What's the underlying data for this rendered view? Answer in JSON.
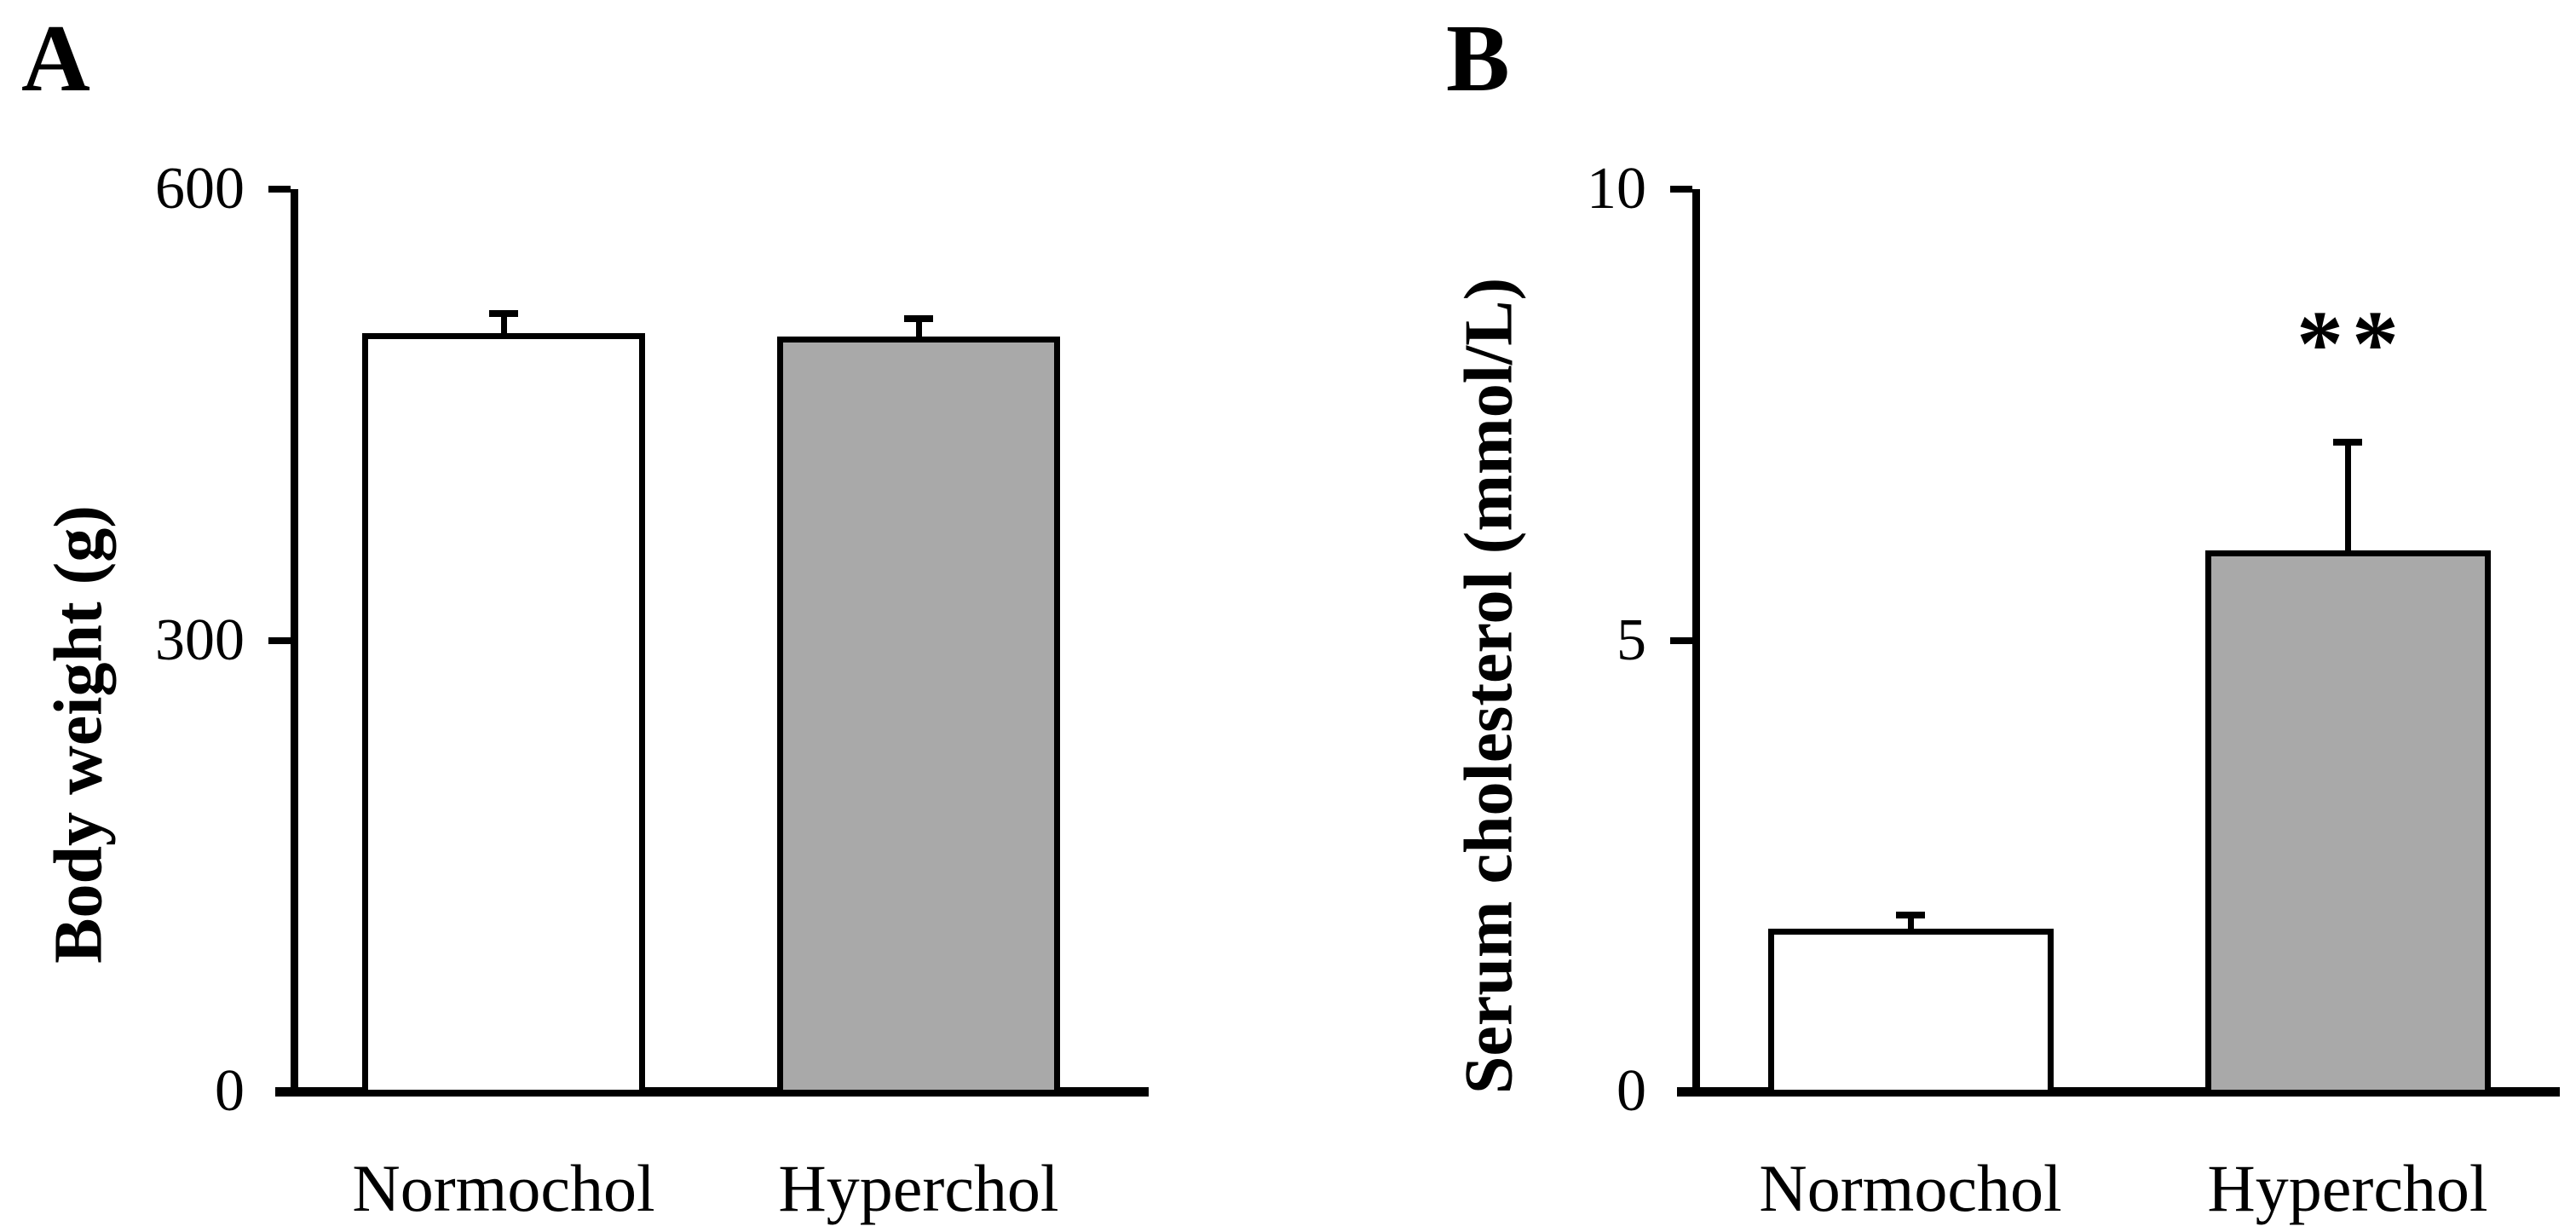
{
  "figure": {
    "background": "#ffffff",
    "panel_letters": [
      "A",
      "B"
    ],
    "groups": [
      "Normochol",
      "Hyperchol"
    ],
    "bar_gray": "#a9a9a9",
    "bar_white": "#ffffff",
    "axis_color": "#000000",
    "significance_marker": "**"
  },
  "chart_data": [
    {
      "type": "bar",
      "panel": "A",
      "title": "",
      "xlabel": "",
      "ylabel": "Body weight (g)",
      "categories": [
        "Normochol",
        "Hyperchol"
      ],
      "values": [
        504,
        502
      ],
      "errors": [
        13,
        12
      ],
      "ylim": [
        0,
        600
      ],
      "yticks": [
        0,
        300,
        600
      ],
      "bar_fills": [
        "#ffffff",
        "#a9a9a9"
      ],
      "bar_edge_color": "#000000",
      "grid": false,
      "legend": false,
      "annotations": []
    },
    {
      "type": "bar",
      "panel": "B",
      "title": "",
      "xlabel": "",
      "ylabel": "Serum cholesterol (mmol/L)",
      "categories": [
        "Normochol",
        "Hyperchol"
      ],
      "values": [
        1.8,
        6.0
      ],
      "errors": [
        0.15,
        1.2
      ],
      "ylim": [
        0,
        10
      ],
      "yticks": [
        0,
        5,
        10
      ],
      "bar_fills": [
        "#ffffff",
        "#a9a9a9"
      ],
      "bar_edge_color": "#000000",
      "grid": false,
      "legend": false,
      "annotations": [
        {
          "target": "Hyperchol",
          "text": "**"
        }
      ]
    }
  ]
}
